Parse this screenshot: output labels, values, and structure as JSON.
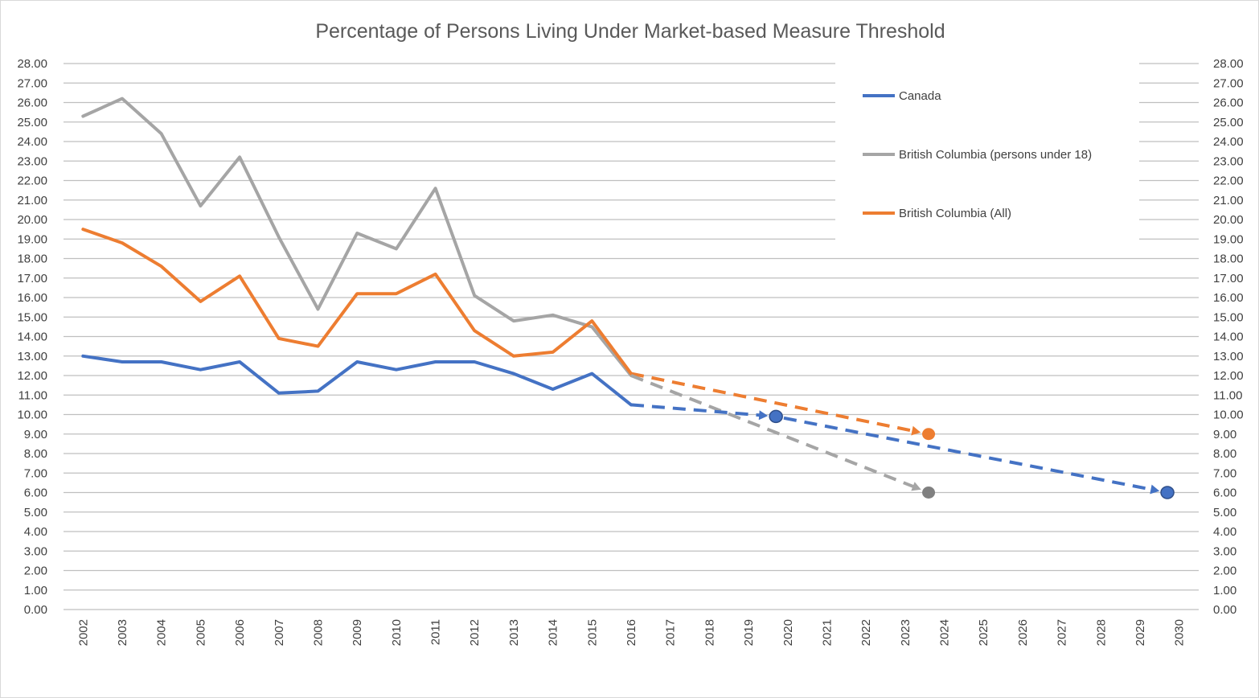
{
  "chart_data": {
    "type": "line",
    "title": "Percentage of Persons Living Under Market-based Measure Threshold",
    "xlabel": "",
    "ylabel": "",
    "categories": [
      "2002",
      "2003",
      "2004",
      "2005",
      "2006",
      "2007",
      "2008",
      "2009",
      "2010",
      "2011",
      "2012",
      "2013",
      "2014",
      "2015",
      "2016",
      "2017",
      "2018",
      "2019",
      "2020",
      "2021",
      "2022",
      "2023",
      "2024",
      "2025",
      "2026",
      "2027",
      "2028",
      "2029",
      "2030"
    ],
    "ylim": [
      0,
      28
    ],
    "yticks": [
      "0.00",
      "1.00",
      "2.00",
      "3.00",
      "4.00",
      "5.00",
      "6.00",
      "7.00",
      "8.00",
      "9.00",
      "10.00",
      "11.00",
      "12.00",
      "13.00",
      "14.00",
      "15.00",
      "16.00",
      "17.00",
      "18.00",
      "19.00",
      "20.00",
      "21.00",
      "22.00",
      "23.00",
      "24.00",
      "25.00",
      "26.00",
      "27.00",
      "28.00"
    ],
    "grid": true,
    "legend_position": "top-right",
    "series": [
      {
        "name": "Canada",
        "color": "#4472c4",
        "x": [
          "2002",
          "2003",
          "2004",
          "2005",
          "2006",
          "2007",
          "2008",
          "2009",
          "2010",
          "2011",
          "2012",
          "2013",
          "2014",
          "2015",
          "2016"
        ],
        "values": [
          13.0,
          12.7,
          12.7,
          12.3,
          12.7,
          11.1,
          11.2,
          12.7,
          12.3,
          12.7,
          12.7,
          12.1,
          11.3,
          12.1,
          10.5
        ]
      },
      {
        "name": "British Columbia (persons under 18)",
        "color": "#a5a5a5",
        "x": [
          "2002",
          "2003",
          "2004",
          "2005",
          "2006",
          "2007",
          "2008",
          "2009",
          "2010",
          "2011",
          "2012",
          "2013",
          "2014",
          "2015",
          "2016"
        ],
        "values": [
          25.3,
          26.2,
          24.4,
          20.7,
          23.2,
          19.1,
          15.4,
          19.3,
          18.5,
          21.6,
          16.1,
          14.8,
          15.1,
          14.5,
          12.0
        ]
      },
      {
        "name": "British Columbia (All)",
        "color": "#ed7d31",
        "x": [
          "2002",
          "2003",
          "2004",
          "2005",
          "2006",
          "2007",
          "2008",
          "2009",
          "2010",
          "2011",
          "2012",
          "2013",
          "2014",
          "2015",
          "2016"
        ],
        "values": [
          19.5,
          18.8,
          17.6,
          15.8,
          17.1,
          13.9,
          13.5,
          16.2,
          16.2,
          17.2,
          14.3,
          13.0,
          13.2,
          14.8,
          12.1
        ]
      }
    ],
    "projections": [
      {
        "series": "British Columbia (All)",
        "color": "#ed7d31",
        "from": {
          "x": 2016,
          "y": 12.1
        },
        "to": {
          "x": 2023.6,
          "y": 9.0
        },
        "marker_color": "#ed7d31"
      },
      {
        "series": "British Columbia (persons under 18)",
        "color": "#a5a5a5",
        "from": {
          "x": 2016,
          "y": 12.0
        },
        "to": {
          "x": 2023.6,
          "y": 6.0
        },
        "marker_color": "#808080"
      },
      {
        "series": "Canada",
        "color": "#4472c4",
        "from": {
          "x": 2016,
          "y": 10.5
        },
        "to": {
          "x": 2019.7,
          "y": 9.9
        },
        "marker_color": "#4472c4"
      },
      {
        "series": "Canada",
        "color": "#4472c4",
        "from": {
          "x": 2019.7,
          "y": 9.9
        },
        "to": {
          "x": 2029.7,
          "y": 6.0
        },
        "marker_color": "#4472c4"
      }
    ]
  }
}
